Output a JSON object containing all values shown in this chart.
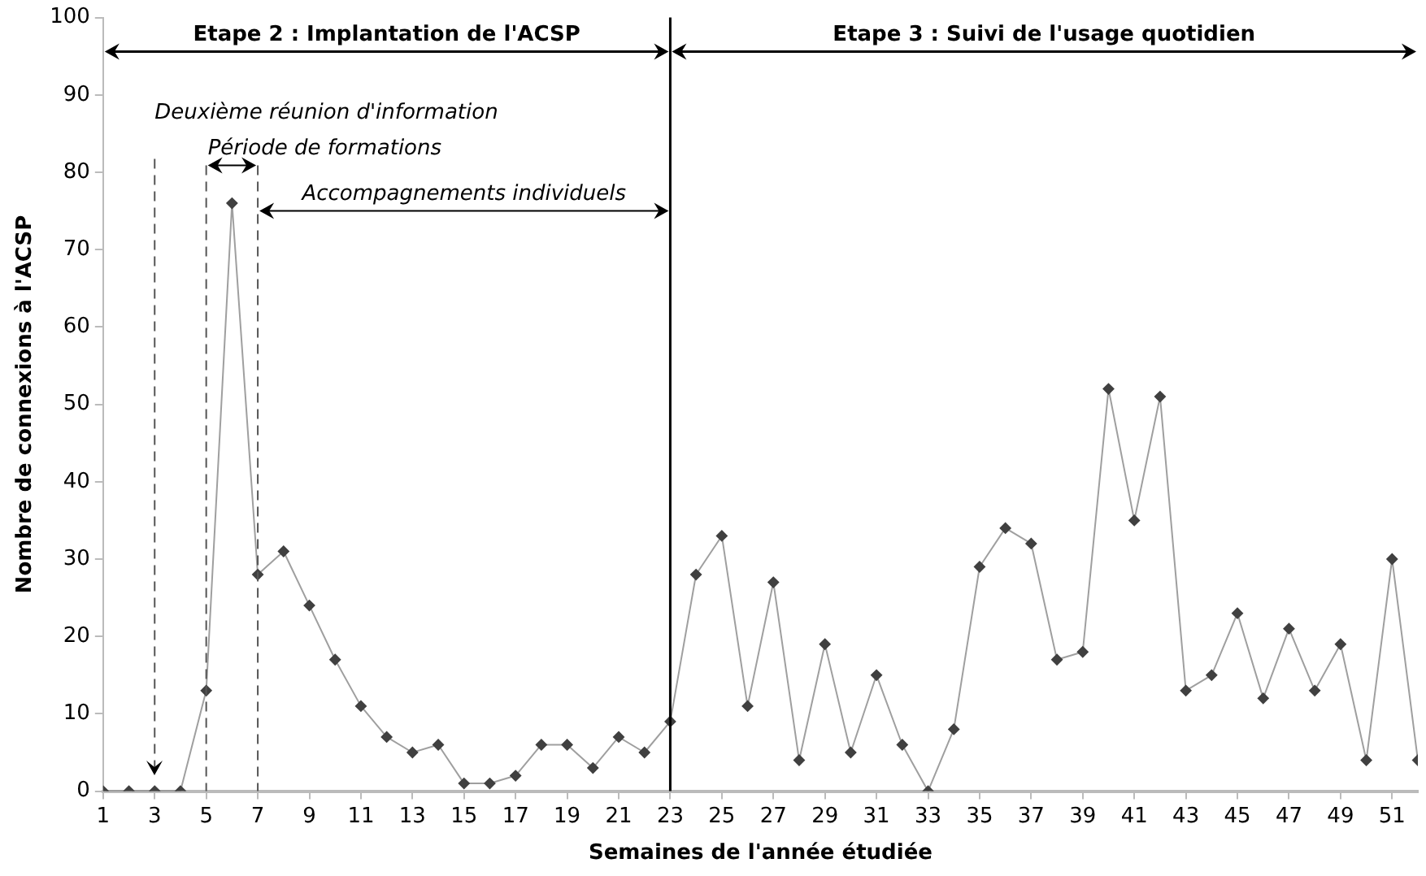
{
  "chart_data": {
    "type": "line",
    "xlabel": "Semaines de l'année étudiée",
    "ylabel": "Nombre de connexions à l'ACSP",
    "x": [
      1,
      2,
      3,
      4,
      5,
      6,
      7,
      8,
      9,
      10,
      11,
      12,
      13,
      14,
      15,
      16,
      17,
      18,
      19,
      20,
      21,
      22,
      23,
      24,
      25,
      26,
      27,
      28,
      29,
      30,
      31,
      32,
      33,
      34,
      35,
      36,
      37,
      38,
      39,
      40,
      41,
      42,
      43,
      44,
      45,
      46,
      47,
      48,
      49,
      50,
      51,
      52
    ],
    "series": [
      {
        "color": "#404040",
        "values": [
          0,
          0,
          0,
          0,
          13,
          76,
          28,
          31,
          24,
          17,
          11,
          7,
          5,
          6,
          1,
          1,
          2,
          6,
          6,
          3,
          7,
          5,
          9,
          28,
          33,
          11,
          27,
          4,
          19,
          5,
          15,
          6,
          0,
          8,
          29,
          34,
          32,
          17,
          18,
          52,
          35,
          51,
          13,
          15,
          23,
          12,
          21,
          13,
          19,
          4,
          30,
          4
        ]
      }
    ],
    "xlim": [
      1,
      52
    ],
    "xticks": [
      1,
      3,
      5,
      7,
      9,
      11,
      13,
      15,
      17,
      19,
      21,
      23,
      25,
      27,
      29,
      31,
      33,
      35,
      37,
      39,
      41,
      43,
      45,
      47,
      49,
      51
    ],
    "ylim": [
      0,
      100
    ],
    "yticks": [
      0,
      10,
      20,
      30,
      40,
      50,
      60,
      70,
      80,
      90,
      100
    ],
    "grid": false,
    "legend": false,
    "marker": "diamond",
    "line_style": "solid",
    "ref_lines": [
      {
        "axis": "x",
        "value": 3,
        "label": "Deuxième réunion d'information",
        "line_style": "dashed"
      },
      {
        "axis": "x",
        "value": 5,
        "label": null,
        "line_style": "dashed"
      },
      {
        "axis": "x",
        "value": 7,
        "label": null,
        "line_style": "dashed"
      },
      {
        "axis": "x",
        "value": 23,
        "label": null,
        "line_style": "solid"
      }
    ],
    "annotations": [
      "Etape 2 : Implantation de l'ACSP",
      "Etape 3 : Suivi de l'usage quotidien",
      "Période de formations",
      "Accompagnements individuels"
    ]
  }
}
